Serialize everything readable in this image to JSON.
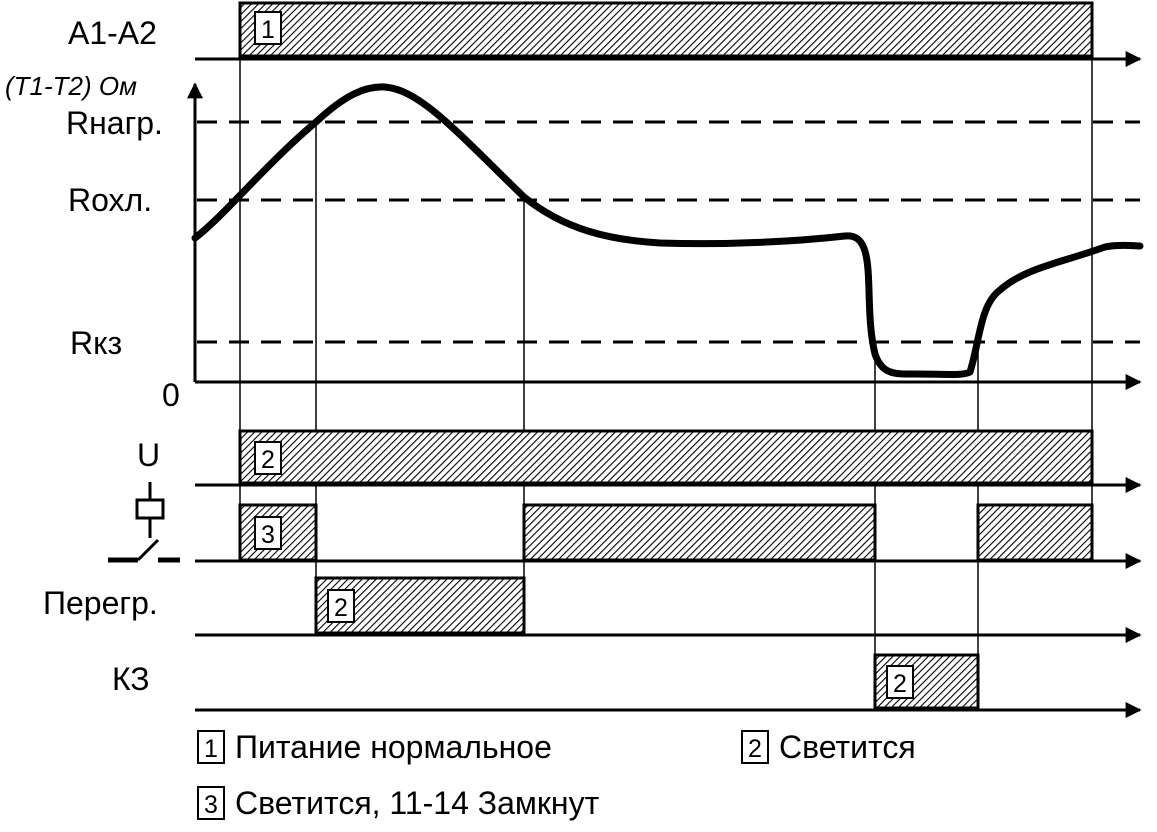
{
  "rows": {
    "a1a2": "A1-A2",
    "t1t2": "(T1-T2) Ом",
    "u": "U",
    "overheat": "Перегр.",
    "short": "КЗ"
  },
  "levels": {
    "r_load": "Rнагр.",
    "r_cool": "Rохл.",
    "r_short": "Rкз",
    "zero": "0"
  },
  "badges": {
    "one": "1",
    "two": "2",
    "three": "3"
  },
  "legend": {
    "item1": "Питание нормальное",
    "item2": "Светится",
    "item3": "Светится, 11-14 Замкнут"
  },
  "colors": {
    "line": "#000000",
    "hatch": "#000000",
    "background": "#ffffff"
  }
}
